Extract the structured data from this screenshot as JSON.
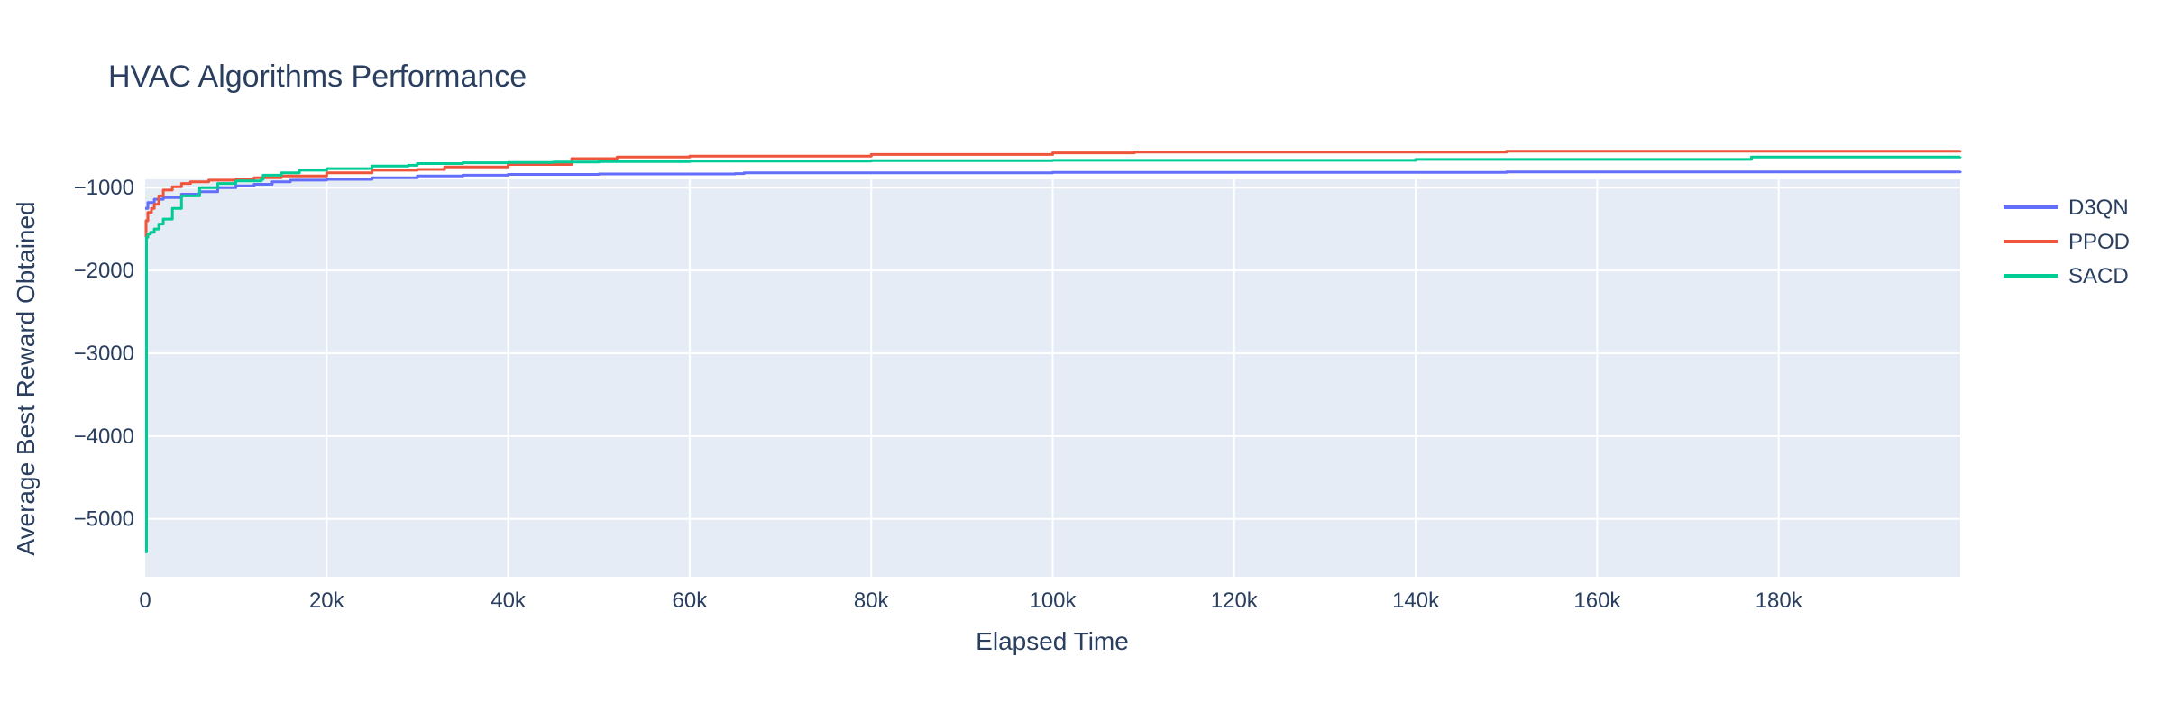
{
  "chart_data": {
    "type": "line",
    "title": "HVAC Algorithms Performance",
    "xlabel": "Elapsed Time",
    "ylabel": "Average Best Reward Obtained",
    "xlim": [
      0,
      200000
    ],
    "ylim": [
      -5700,
      -900
    ],
    "x_ticks": [
      0,
      20000,
      40000,
      60000,
      80000,
      100000,
      120000,
      140000,
      160000,
      180000
    ],
    "x_tick_labels": [
      "0",
      "20k",
      "40k",
      "60k",
      "80k",
      "100k",
      "120k",
      "140k",
      "160k",
      "180k"
    ],
    "y_ticks": [
      -1000,
      -2000,
      -3000,
      -4000,
      -5000
    ],
    "y_tick_labels": [
      "−1000",
      "−2000",
      "−3000",
      "−4000",
      "−5000"
    ],
    "grid": true,
    "legend_position": "top-right",
    "series": [
      {
        "name": "D3QN",
        "color": "#636efa",
        "x": [
          0,
          300,
          1000,
          2000,
          4000,
          6000,
          8000,
          10000,
          12000,
          14000,
          16000,
          20000,
          25000,
          30000,
          35000,
          40000,
          50000,
          65000,
          66000,
          100000,
          150000,
          200000
        ],
        "y": [
          -1250,
          -1180,
          -1140,
          -1120,
          -1080,
          -1050,
          -1000,
          -980,
          -960,
          -930,
          -910,
          -900,
          -880,
          -860,
          -850,
          -840,
          -835,
          -830,
          -820,
          -815,
          -810,
          -800
        ]
      },
      {
        "name": "PPOD",
        "color": "#EF553B",
        "x": [
          0,
          100,
          300,
          700,
          1000,
          1500,
          2000,
          3000,
          4000,
          5000,
          7000,
          10000,
          12000,
          15000,
          20000,
          25000,
          30000,
          33000,
          40000,
          47000,
          52000,
          60000,
          80000,
          100000,
          109000,
          150000,
          200000
        ],
        "y": [
          -1600,
          -1400,
          -1300,
          -1250,
          -1200,
          -1100,
          -1030,
          -990,
          -950,
          -930,
          -910,
          -900,
          -880,
          -860,
          -820,
          -790,
          -780,
          -750,
          -720,
          -650,
          -630,
          -620,
          -600,
          -580,
          -570,
          -560,
          -550
        ]
      },
      {
        "name": "SACD",
        "color": "#00cc96",
        "x": [
          0,
          150,
          300,
          600,
          1000,
          1500,
          2000,
          3000,
          4000,
          6000,
          8000,
          10000,
          12800,
          13000,
          15000,
          17000,
          20000,
          25000,
          29000,
          30000,
          35000,
          40000,
          45000,
          50000,
          60000,
          80000,
          100000,
          140000,
          177000,
          200000
        ],
        "y": [
          -5400,
          -1600,
          -1560,
          -1540,
          -1500,
          -1440,
          -1380,
          -1250,
          -1100,
          -1000,
          -950,
          -920,
          -900,
          -850,
          -820,
          -790,
          -770,
          -740,
          -730,
          -710,
          -700,
          -695,
          -690,
          -685,
          -680,
          -675,
          -670,
          -660,
          -630,
          -625
        ]
      }
    ]
  }
}
